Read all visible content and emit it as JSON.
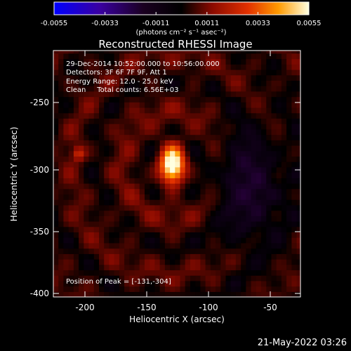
{
  "colorbar": {
    "ticks": [
      "-0.0055",
      "-0.0033",
      "-0.0011",
      "0.0011",
      "0.0033",
      "0.0055"
    ],
    "unit_label": "(photons cm⁻² s⁻¹ asec⁻²)",
    "range": [
      -0.0055,
      0.0055
    ]
  },
  "info": {
    "time_range": "29-Dec-2014 10:52:00.000 to 10:56:00.000",
    "detectors": "Detectors: 3F 6F 7F 9F, Att 1",
    "energy": "Energy Range: 12.0 - 25.0 keV",
    "clean_counts": "Clean     Total counts: 6.56E+03",
    "peak": "Position of Peak = [-131,-304]"
  },
  "timestamp": "21-May-2022 03:26",
  "chart_data": {
    "type": "heatmap",
    "title": "Reconstructed RHESSI Image",
    "xlabel": "Heliocentric X (arcsec)",
    "ylabel": "Heliocentric Y (arcsec)",
    "xlim": [
      -225,
      -30
    ],
    "ylim": [
      -402,
      -220
    ],
    "x_ticks": [
      "-200",
      "-150",
      "-100",
      "-50"
    ],
    "y_ticks": [
      "-250",
      "-300",
      "-350",
      "-400"
    ],
    "peak": {
      "x": -131,
      "y": -304,
      "value": 0.0055
    },
    "secondary_source": {
      "x": -205,
      "y": -296
    },
    "negative_region": {
      "x": -70,
      "y": -320,
      "value": -0.0014
    },
    "colormap": [
      "#0000ff",
      "#1a0030",
      "#000000",
      "#8a0a00",
      "#e23000",
      "#ff9a00",
      "#ffffd0"
    ]
  }
}
